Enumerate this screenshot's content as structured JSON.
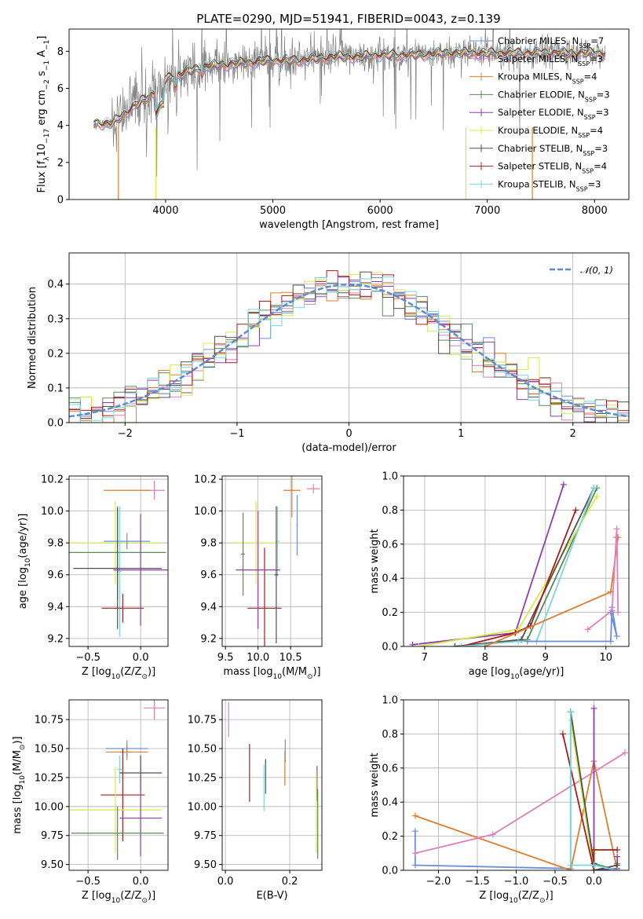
{
  "figure": {
    "title": "PLATE=0290, MJD=51941, FIBERID=0043, z=0.139"
  },
  "colors": {
    "Chabrier MILES": "#6a8fdc",
    "Salpeter MILES": "#e07fb8",
    "Kroupa MILES": "#de7d2c",
    "Chabrier ELODIE": "#5a8a5a",
    "Salpeter ELODIE": "#8e3ea8",
    "Kroupa ELODIE": "#d8e84a",
    "Chabrier STELIB": "#505050",
    "Salpeter STELIB": "#a81c1c",
    "Kroupa STELIB": "#7ad6de",
    "observed": "#808080"
  },
  "chart_data": [
    {
      "id": "spectrum",
      "type": "line",
      "xlabel": "wavelength [Angstrom, rest frame]",
      "ylabel_parts": [
        "Flux [f",
        "λ",
        "10",
        "−17",
        " erg cm",
        "−2",
        " s",
        "−1",
        " A",
        "−1",
        "]"
      ],
      "xlim": [
        3100,
        8320
      ],
      "ylim": [
        0,
        9.2
      ],
      "xticks": [
        4000,
        5000,
        6000,
        7000,
        8000
      ],
      "yticks": [
        0,
        2,
        4,
        6,
        8
      ],
      "legend_position": "top-right",
      "legend": [
        {
          "model": "Chabrier MILES",
          "label_a": "Chabrier MILES, N",
          "sub": "SSP",
          "label_b": "=7"
        },
        {
          "model": "Salpeter MILES",
          "label_a": "Salpeter MILES, N",
          "sub": "SSP",
          "label_b": "=3"
        },
        {
          "model": "Kroupa MILES",
          "label_a": "Kroupa MILES, N",
          "sub": "SSP",
          "label_b": "=4"
        },
        {
          "model": "Chabrier ELODIE",
          "label_a": "Chabrier ELODIE, N",
          "sub": "SSP",
          "label_b": "=3"
        },
        {
          "model": "Salpeter ELODIE",
          "label_a": "Salpeter ELODIE, N",
          "sub": "SSP",
          "label_b": "=3"
        },
        {
          "model": "Kroupa ELODIE",
          "label_a": "Kroupa ELODIE, N",
          "sub": "SSP",
          "label_b": "=4"
        },
        {
          "model": "Chabrier STELIB",
          "label_a": "Chabrier STELIB, N",
          "sub": "SSP",
          "label_b": "=3"
        },
        {
          "model": "Salpeter STELIB",
          "label_a": "Salpeter STELIB, N",
          "sub": "SSP",
          "label_b": "=4"
        },
        {
          "model": "Kroupa STELIB",
          "label_a": "Kroupa STELIB, N",
          "sub": "SSP",
          "label_b": "=3"
        }
      ],
      "continuum_x": [
        3330,
        3500,
        3700,
        3900,
        4000,
        4200,
        4400,
        4600,
        4800,
        5000,
        5200,
        5400,
        5600,
        5800,
        6000,
        6200,
        6400,
        6600,
        6800,
        7000,
        7200,
        7400,
        7600,
        7800,
        8000,
        8100
      ],
      "continuum_y": [
        4.1,
        4.1,
        5.0,
        5.8,
        6.5,
        6.9,
        7.2,
        7.3,
        7.4,
        7.5,
        7.5,
        7.6,
        7.7,
        7.7,
        7.8,
        7.8,
        7.8,
        7.9,
        7.9,
        7.9,
        7.9,
        7.9,
        7.9,
        7.9,
        7.9,
        7.9
      ],
      "drop_lines": [
        {
          "x": 3560,
          "model": "Kroupa MILES"
        },
        {
          "x": 3910,
          "model": "Kroupa ELODIE"
        },
        {
          "x": 6800,
          "model": "Kroupa ELODIE"
        },
        {
          "x": 7420,
          "model": "Kroupa MILES"
        }
      ]
    },
    {
      "id": "residuals",
      "type": "step",
      "xlabel": "(data-model)/error",
      "ylabel": "Normed distribution",
      "xlim": [
        -2.5,
        2.5
      ],
      "ylim": [
        0,
        0.49
      ],
      "xticks": [
        -2,
        -1,
        0,
        1,
        2
      ],
      "yticks": [
        0.0,
        0.1,
        0.2,
        0.3,
        0.4
      ],
      "legend": "𝒩(0, 1)",
      "legend_position": "top-right",
      "bin_width": 0.1
    },
    {
      "id": "age-vs-Z",
      "type": "errorbar",
      "xlabel_parts": [
        "Z [log",
        "10",
        "(Z/Z",
        "⊙",
        ")]"
      ],
      "ylabel_parts": [
        "age  [log",
        "10",
        "(age/yr)]"
      ],
      "xlim": [
        -0.68,
        0.26
      ],
      "ylim": [
        9.15,
        10.22
      ],
      "xticks": [
        -0.5,
        0.0
      ],
      "yticks": [
        9.2,
        9.4,
        9.6,
        9.8,
        10.0,
        10.2
      ],
      "points": [
        {
          "model": "Salpeter MILES",
          "x": 0.13,
          "y": 10.13,
          "xerr": 0.1,
          "yerr": 0.06
        },
        {
          "model": "Kroupa MILES",
          "x": -0.13,
          "y": 10.13,
          "xerr": 0.22,
          "yerr": 0.0
        },
        {
          "model": "Kroupa ELODIE",
          "x": -0.24,
          "y": 9.8,
          "xerr": 0.44,
          "yerr": 0.26
        },
        {
          "model": "Chabrier MILES",
          "x": -0.13,
          "y": 9.81,
          "xerr": 0.22,
          "yerr": 0.05
        },
        {
          "model": "Chabrier ELODIE",
          "x": -0.22,
          "y": 9.74,
          "xerr": 0.46,
          "yerr": 0.29
        },
        {
          "model": "Kroupa STELIB",
          "x": -0.2,
          "y": 9.62,
          "xerr": 0.02,
          "yerr": 0.41
        },
        {
          "model": "Salpeter STELIB",
          "x": -0.17,
          "y": 9.39,
          "xerr": 0.2,
          "yerr": 0.09
        },
        {
          "model": "Salpeter ELODIE",
          "x": 0.0,
          "y": 9.63,
          "xerr": 0.26,
          "yerr": 0.35
        },
        {
          "model": "Chabrier STELIB",
          "x": -0.22,
          "y": 9.64,
          "xerr": 0.42,
          "yerr": 0.38
        }
      ]
    },
    {
      "id": "age-vs-mass",
      "type": "errorbar",
      "xlabel_parts": [
        "mass [log",
        "10",
        "(M/M",
        "⊙",
        ")]"
      ],
      "xlim": [
        9.45,
        10.98
      ],
      "ylim": [
        9.15,
        10.22
      ],
      "xticks": [
        9.5,
        10.0,
        10.5
      ],
      "yticks": [
        9.2,
        9.4,
        9.6,
        9.8,
        10.0,
        10.2
      ],
      "points": [
        {
          "model": "Salpeter MILES",
          "x": 10.85,
          "y": 10.14,
          "xerr": 0.1,
          "yerr": 0.03
        },
        {
          "model": "Kroupa MILES",
          "x": 10.52,
          "y": 10.13,
          "xerr": 0.13,
          "yerr": 0.17
        },
        {
          "model": "Chabrier MILES",
          "x": 10.6,
          "y": 9.91,
          "xerr": 0.01,
          "yerr": 0.19
        },
        {
          "model": "Kroupa ELODIE",
          "x": 9.97,
          "y": 9.8,
          "xerr": 0.36,
          "yerr": 0.26
        },
        {
          "model": "Kroupa STELIB",
          "x": 10.3,
          "y": 9.81,
          "xerr": 0.03,
          "yerr": 0.22
        },
        {
          "model": "Chabrier ELODIE",
          "x": 9.77,
          "y": 9.73,
          "xerr": 0.03,
          "yerr": 0.26
        },
        {
          "model": "Salpeter STELIB",
          "x": 10.1,
          "y": 9.39,
          "xerr": 0.26,
          "yerr": 0.38
        },
        {
          "model": "Salpeter ELODIE",
          "x": 10.0,
          "y": 9.63,
          "xerr": 0.34,
          "yerr": 0.37
        },
        {
          "model": "Chabrier STELIB",
          "x": 10.28,
          "y": 9.6,
          "xerr": 0.03,
          "yerr": 0.43
        }
      ]
    },
    {
      "id": "mass-weight-vs-age",
      "type": "line",
      "xlabel_parts": [
        "age  [log",
        "10",
        "(age/yr)]"
      ],
      "ylabel": "mass weight",
      "xlim": [
        6.65,
        10.38
      ],
      "ylim": [
        0.0,
        1.0
      ],
      "xticks": [
        7,
        8,
        9,
        10
      ],
      "yticks": [
        0.0,
        0.2,
        0.4,
        0.6,
        0.8,
        1.0
      ],
      "series": [
        {
          "model": "Chabrier ELODIE",
          "x": [
            7.5,
            8.7,
            9.85
          ],
          "y": [
            0.0,
            0.04,
            0.93
          ]
        },
        {
          "model": "Salpeter ELODIE",
          "x": [
            6.8,
            8.5,
            9.3
          ],
          "y": [
            0.01,
            0.08,
            0.95
          ]
        },
        {
          "model": "Kroupa ELODIE",
          "x": [
            6.9,
            8.55,
            9.85
          ],
          "y": [
            0.0,
            0.1,
            0.88
          ]
        },
        {
          "model": "Chabrier STELIB",
          "x": [
            7.5,
            8.6,
            9.8
          ],
          "y": [
            0.0,
            0.04,
            0.93
          ]
        },
        {
          "model": "Salpeter STELIB",
          "x": [
            7.6,
            8.5,
            8.75,
            9.5
          ],
          "y": [
            0.0,
            0.08,
            0.12,
            0.8
          ]
        },
        {
          "model": "Kroupa STELIB",
          "x": [
            7.6,
            8.55,
            8.85,
            9.8
          ],
          "y": [
            0.0,
            0.03,
            0.03,
            0.93
          ]
        },
        {
          "model": "Kroupa MILES",
          "x": [
            8.0,
            10.08,
            10.2,
            10.17
          ],
          "y": [
            0.0,
            0.32,
            0.64,
            0.64
          ]
        },
        {
          "model": "Chabrier MILES",
          "x": [
            8.7,
            10.08,
            10.1,
            10.18,
            10.08
          ],
          "y": [
            0.03,
            0.03,
            0.23,
            0.06,
            0.2
          ]
        },
        {
          "model": "Salpeter MILES",
          "x": [
            9.7,
            10.1,
            10.18,
            10.2
          ],
          "y": [
            0.1,
            0.21,
            0.69,
            0.2
          ]
        }
      ]
    },
    {
      "id": "mass-vs-Z",
      "type": "errorbar",
      "xlabel_parts": [
        "Z [log",
        "10",
        "(Z/Z",
        "⊙",
        ")]"
      ],
      "ylabel_parts": [
        "mass [log",
        "10",
        "(M/M",
        "⊙",
        ")]"
      ],
      "xlim": [
        -0.68,
        0.26
      ],
      "ylim": [
        9.45,
        10.92
      ],
      "xticks": [
        -0.5,
        0.0
      ],
      "yticks": [
        9.5,
        9.75,
        10.0,
        10.25,
        10.5,
        10.75
      ],
      "points": [
        {
          "model": "Salpeter MILES",
          "x": 0.13,
          "y": 10.85,
          "xerr": 0.1,
          "yerr": 0.1
        },
        {
          "model": "Chabrier MILES",
          "x": -0.13,
          "y": 10.5,
          "xerr": 0.2,
          "yerr": 0.07
        },
        {
          "model": "Kroupa MILES",
          "x": -0.13,
          "y": 10.47,
          "xerr": 0.2,
          "yerr": 0.07
        },
        {
          "model": "Kroupa STELIB",
          "x": -0.2,
          "y": 10.32,
          "xerr": 0.02,
          "yerr": 0.12
        },
        {
          "model": "Chabrier STELIB",
          "x": 0.0,
          "y": 10.29,
          "xerr": 0.2,
          "yerr": 0.15
        },
        {
          "model": "Salpeter STELIB",
          "x": -0.17,
          "y": 10.1,
          "xerr": 0.21,
          "yerr": 0.4
        },
        {
          "model": "Kroupa ELODIE",
          "x": -0.24,
          "y": 9.97,
          "xerr": 0.44,
          "yerr": 0.37
        },
        {
          "model": "Salpeter ELODIE",
          "x": 0.0,
          "y": 9.9,
          "xerr": 0.2,
          "yerr": 0.33
        },
        {
          "model": "Chabrier ELODIE",
          "x": -0.22,
          "y": 9.77,
          "xerr": 0.44,
          "yerr": 0.23
        }
      ]
    },
    {
      "id": "mass-vs-EBV",
      "type": "errorbar",
      "xlabel": "E(B-V)",
      "xlim": [
        -0.01,
        0.3
      ],
      "ylim": [
        9.45,
        10.92
      ],
      "xticks": [
        0.0,
        0.2
      ],
      "yticks": [
        9.5,
        9.75,
        10.0,
        10.25,
        10.5,
        10.75
      ],
      "points": [
        {
          "model": "Salpeter MILES",
          "x": 0.01,
          "y": 10.75,
          "xerr": 0.0,
          "yerr": 0.15
        },
        {
          "model": "Salpeter STELIB",
          "x": 0.075,
          "y": 10.29,
          "xerr": 0.0,
          "yerr": 0.25
        },
        {
          "model": "Kroupa STELIB",
          "x": 0.12,
          "y": 10.16,
          "xerr": 0.0,
          "yerr": 0.2
        },
        {
          "model": "Chabrier STELIB",
          "x": 0.125,
          "y": 10.26,
          "xerr": 0.0,
          "yerr": 0.15
        },
        {
          "model": "Kroupa MILES",
          "x": 0.185,
          "y": 10.33,
          "xerr": 0.0,
          "yerr": 0.15
        },
        {
          "model": "Chabrier MILES",
          "x": 0.186,
          "y": 10.48,
          "xerr": 0.0,
          "yerr": 0.1
        },
        {
          "model": "Salpeter ELODIE",
          "x": 0.285,
          "y": 10.2,
          "xerr": 0.0,
          "yerr": 0.15
        },
        {
          "model": "Kroupa ELODIE",
          "x": 0.283,
          "y": 9.95,
          "xerr": 0.0,
          "yerr": 0.35
        },
        {
          "model": "Chabrier ELODIE",
          "x": 0.287,
          "y": 9.85,
          "xerr": 0.0,
          "yerr": 0.3
        }
      ]
    },
    {
      "id": "mass-weight-vs-Z",
      "type": "line",
      "xlabel_parts": [
        "Z [log",
        "10",
        "(Z/Z",
        "⊙",
        ")]"
      ],
      "ylabel": "mass weight",
      "xlim": [
        -2.45,
        0.45
      ],
      "ylim": [
        0.0,
        1.0
      ],
      "xticks": [
        -2.0,
        -1.5,
        -1.0,
        -0.5,
        0.0
      ],
      "yticks": [
        0.0,
        0.2,
        0.4,
        0.6,
        0.8,
        1.0
      ],
      "series": [
        {
          "model": "Chabrier MILES",
          "x": [
            -2.3,
            -2.3,
            -0.3,
            -0.3
          ],
          "y": [
            0.23,
            0.03,
            0.01,
            0.93
          ]
        },
        {
          "model": "Kroupa MILES",
          "x": [
            -2.3,
            -0.3,
            0.0,
            0.3
          ],
          "y": [
            0.32,
            0.0,
            0.64,
            0.0
          ]
        },
        {
          "model": "Salpeter MILES",
          "x": [
            -2.3,
            -1.3,
            0.4
          ],
          "y": [
            0.1,
            0.21,
            0.69
          ]
        },
        {
          "model": "Chabrier ELODIE",
          "x": [
            -0.3,
            0.0,
            0.3,
            0.3
          ],
          "y": [
            0.93,
            0.04,
            0.0,
            0.04
          ]
        },
        {
          "model": "Salpeter ELODIE",
          "x": [
            0.0,
            0.0,
            0.3,
            0.3
          ],
          "y": [
            0.95,
            0.0,
            0.01,
            0.08
          ]
        },
        {
          "model": "Kroupa ELODIE",
          "x": [
            -0.3,
            0.0,
            0.0
          ],
          "y": [
            0.88,
            0.0,
            0.1
          ]
        },
        {
          "model": "Chabrier STELIB",
          "x": [
            -0.3,
            0.0,
            0.0,
            0.3
          ],
          "y": [
            0.93,
            0.04,
            0.0,
            0.03
          ]
        },
        {
          "model": "Salpeter STELIB",
          "x": [
            -0.4,
            0.0,
            0.0,
            0.3
          ],
          "y": [
            0.8,
            0.0,
            0.12,
            0.12
          ]
        },
        {
          "model": "Kroupa STELIB",
          "x": [
            -0.3,
            -0.3,
            0.0,
            0.3
          ],
          "y": [
            0.93,
            0.03,
            0.03,
            0.0
          ]
        }
      ]
    }
  ]
}
